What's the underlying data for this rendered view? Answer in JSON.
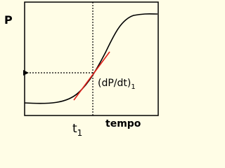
{
  "axis_labels": {
    "y": "P",
    "x": "tempo"
  },
  "time_marker": {
    "main": "t",
    "sub": "1"
  },
  "slope_label": {
    "main": "(dP/dt)",
    "sub": "1"
  }
}
